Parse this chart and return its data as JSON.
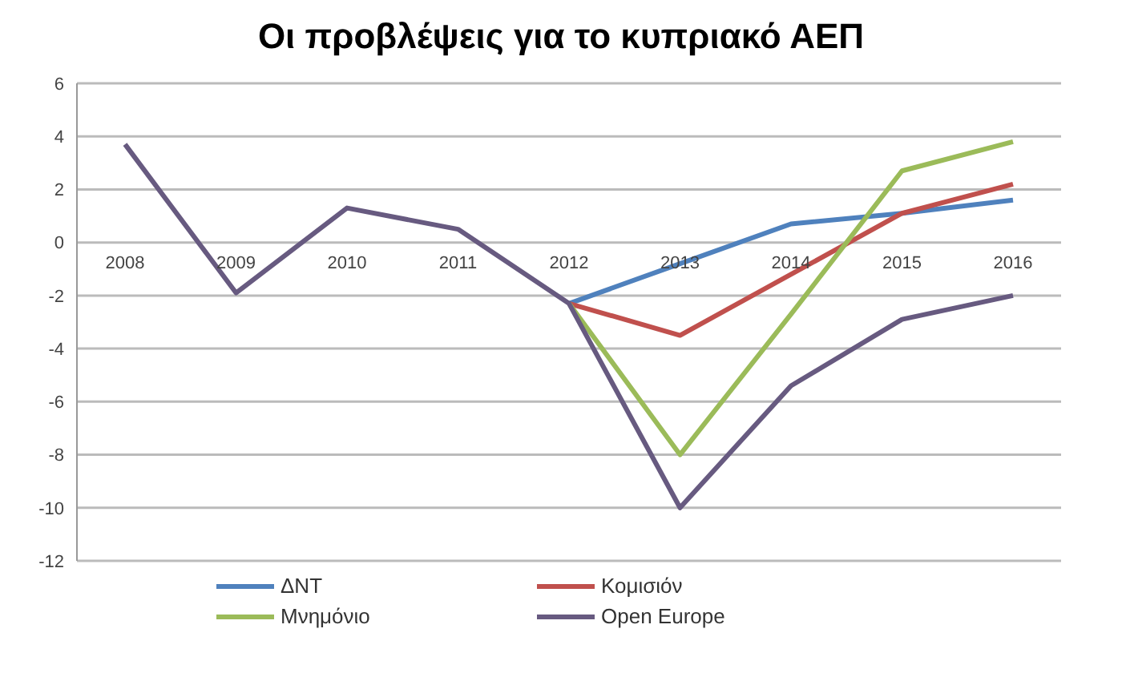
{
  "chart_data": {
    "type": "line",
    "title": "Οι προβλέψεις για το κυπριακό ΑΕΠ",
    "categories": [
      "2008",
      "2009",
      "2010",
      "2011",
      "2012",
      "2013",
      "2014",
      "2015",
      "2016"
    ],
    "series": [
      {
        "name": "ΔΝΤ",
        "color": "#4f81bd",
        "values": [
          null,
          null,
          null,
          null,
          -2.3,
          -0.8,
          0.7,
          1.1,
          1.6
        ]
      },
      {
        "name": "Κομισιόν",
        "color": "#c0504d",
        "values": [
          null,
          null,
          null,
          null,
          -2.3,
          -3.5,
          -1.2,
          1.1,
          2.2
        ]
      },
      {
        "name": "Μνημόνιο",
        "color": "#9bbb59",
        "values": [
          null,
          null,
          null,
          null,
          -2.3,
          -8,
          -2.7,
          2.7,
          3.8
        ]
      },
      {
        "name": "Open Europe",
        "color": "#675a80",
        "values": [
          3.7,
          -1.9,
          1.3,
          0.5,
          -2.3,
          -10,
          -5.4,
          -2.9,
          -2
        ]
      }
    ],
    "ylim": [
      -12,
      6
    ],
    "yticks": [
      -12,
      -10,
      -8,
      -6,
      -4,
      -2,
      0,
      2,
      4,
      6
    ],
    "grid": "y",
    "legend": "bottom",
    "marker": "none",
    "line_style": "solid"
  }
}
